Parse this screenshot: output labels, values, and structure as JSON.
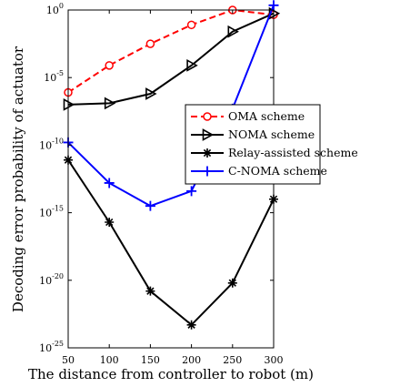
{
  "chart_data": {
    "type": "line",
    "xlabel": "The distance from controller to robot (m)",
    "ylabel": "Decoding error probability of actuator",
    "x": [
      50,
      100,
      150,
      200,
      250,
      300
    ],
    "xlim": [
      50,
      300
    ],
    "ylim_exponent": [
      -25,
      0
    ],
    "yscale": "log",
    "y_ticks": [
      {
        "value": 0,
        "base": "10",
        "exp": "0"
      },
      {
        "value": -5,
        "base": "10",
        "exp": "-5"
      },
      {
        "value": -10,
        "base": "10",
        "exp": "-10"
      },
      {
        "value": -15,
        "base": "10",
        "exp": "-15"
      },
      {
        "value": -20,
        "base": "10",
        "exp": "-20"
      },
      {
        "value": -25,
        "base": "10",
        "exp": "-25"
      }
    ],
    "x_ticks": [
      "50",
      "100",
      "150",
      "200",
      "250",
      "300"
    ],
    "grid": false,
    "legend_placement": "center-right",
    "series": [
      {
        "name": "OMA scheme",
        "color": "#ff0000",
        "line": "dashed",
        "marker": "circle",
        "y_log10": [
          -6.1,
          -4.1,
          -2.5,
          -1.1,
          0.0,
          -0.35
        ]
      },
      {
        "name": "NOMA scheme",
        "color": "#000000",
        "line": "solid",
        "marker": "triangle-right",
        "y_log10": [
          -7.0,
          -6.9,
          -6.2,
          -4.1,
          -1.6,
          -0.25
        ]
      },
      {
        "name": "Relay-assisted scheme",
        "color": "#000000",
        "line": "solid",
        "marker": "asterisk",
        "y_log10": [
          -11.1,
          -15.7,
          -20.8,
          -23.3,
          -20.2,
          -14.0
        ]
      },
      {
        "name": "C-NOMA scheme",
        "color": "#0000ff",
        "line": "solid",
        "marker": "plus",
        "y_log10": [
          -9.8,
          -12.8,
          -14.5,
          -13.4,
          -7.3,
          0.35
        ]
      }
    ]
  }
}
